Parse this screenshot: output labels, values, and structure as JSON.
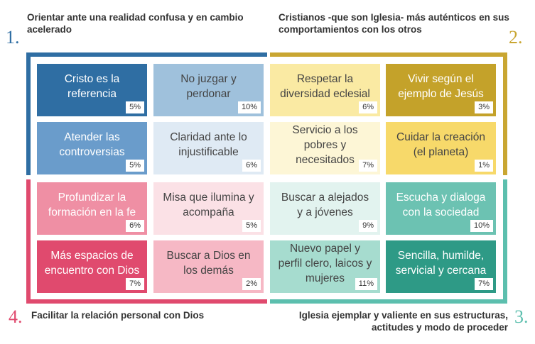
{
  "quadrants": [
    {
      "number": "1.",
      "heading": "Orientar ante una realidad confusa y en cambio acelerado",
      "color": "#2f6ea3"
    },
    {
      "number": "2.",
      "heading": "Cristianos -que son Iglesia- más auténticos en sus comportamientos con los otros",
      "color": "#c9a632"
    },
    {
      "number": "3.",
      "heading": "Iglesia ejemplar y valiente en sus estructuras, actitudes y modo de proceder",
      "color": "#5cbfae"
    },
    {
      "number": "4.",
      "heading": "Facilitar la relación personal con Dios",
      "color": "#e04a6e"
    }
  ],
  "cells": [
    {
      "label": "Cristo es la referencia",
      "pct": "5%",
      "bg": "#2f6ea3",
      "fg": "#ffffff"
    },
    {
      "label": "No juzgar y perdonar",
      "pct": "10%",
      "bg": "#9fc1dc",
      "fg": "#444444"
    },
    {
      "label": "Respetar la diversidad eclesial",
      "pct": "6%",
      "bg": "#faeaa3",
      "fg": "#444444"
    },
    {
      "label": "Vivir según el ejemplo de Jesús",
      "pct": "3%",
      "bg": "#c4a22a",
      "fg": "#ffffff"
    },
    {
      "label": "Atender las controversias",
      "pct": "5%",
      "bg": "#6a9ccb",
      "fg": "#ffffff"
    },
    {
      "label": "Claridad ante lo injustificable",
      "pct": "6%",
      "bg": "#dfeaf4",
      "fg": "#444444"
    },
    {
      "label": "Servicio a los pobres y necesitados",
      "pct": "7%",
      "bg": "#fdf6d6",
      "fg": "#444444"
    },
    {
      "label": "Cuidar la creación (el planeta)",
      "pct": "1%",
      "bg": "#f7d96a",
      "fg": "#444444"
    },
    {
      "label": "Profundizar la formación en la fe",
      "pct": "6%",
      "bg": "#ef8fa4",
      "fg": "#ffffff"
    },
    {
      "label": "Misa que ilumina y acompaña",
      "pct": "5%",
      "bg": "#fbe1e6",
      "fg": "#444444"
    },
    {
      "label": "Buscar a alejados y a jóvenes",
      "pct": "9%",
      "bg": "#e2f3ef",
      "fg": "#444444"
    },
    {
      "label": "Escucha y dialoga con la sociedad",
      "pct": "10%",
      "bg": "#6cc2b2",
      "fg": "#ffffff"
    },
    {
      "label": "Más espacios de encuentro con Dios",
      "pct": "7%",
      "bg": "#e04a6e",
      "fg": "#ffffff"
    },
    {
      "label": "Buscar a Dios en los demás",
      "pct": "2%",
      "bg": "#f6b8c5",
      "fg": "#444444"
    },
    {
      "label": "Nuevo papel y perfil clero, laicos y mujeres",
      "pct": "11%",
      "bg": "#a6dccf",
      "fg": "#444444"
    },
    {
      "label": "Sencilla, humilde, servicial y cercana",
      "pct": "7%",
      "bg": "#2e9a86",
      "fg": "#ffffff"
    }
  ]
}
